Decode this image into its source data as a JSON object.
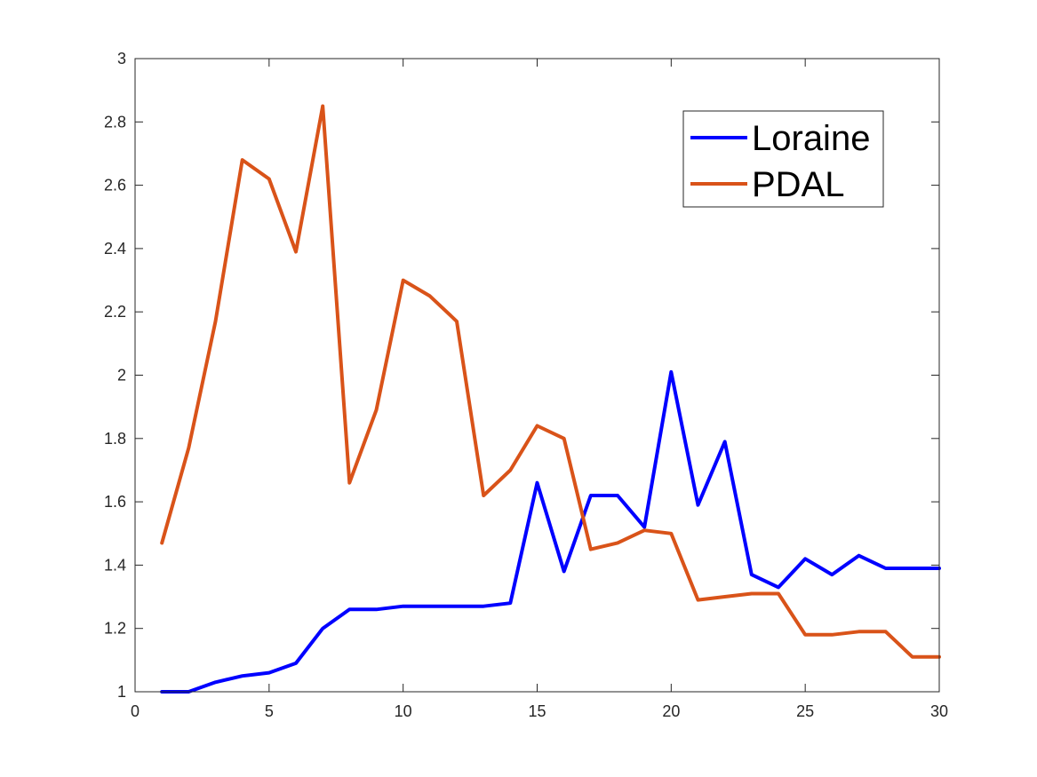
{
  "chart_data": {
    "type": "line",
    "title": "",
    "xlabel": "",
    "ylabel": "",
    "xlim": [
      0,
      30
    ],
    "ylim": [
      1,
      3
    ],
    "xticks": [
      0,
      5,
      10,
      15,
      20,
      25,
      30
    ],
    "yticks": [
      1,
      1.2,
      1.4,
      1.6,
      1.8,
      2,
      2.2,
      2.4,
      2.6,
      2.8,
      3
    ],
    "grid": false,
    "legend_position": "top-right",
    "x": [
      1,
      2,
      3,
      4,
      5,
      6,
      7,
      8,
      9,
      10,
      11,
      12,
      13,
      14,
      15,
      16,
      17,
      18,
      19,
      20,
      21,
      22,
      23,
      24,
      25,
      26,
      27,
      28,
      29,
      30
    ],
    "series": [
      {
        "name": "Loraine",
        "color": "#0000FF",
        "values": [
          1.0,
          1.0,
          1.03,
          1.05,
          1.06,
          1.09,
          1.2,
          1.26,
          1.26,
          1.27,
          1.27,
          1.27,
          1.27,
          1.28,
          1.66,
          1.38,
          1.62,
          1.62,
          1.52,
          2.01,
          1.59,
          1.79,
          1.37,
          1.33,
          1.42,
          1.37,
          1.43,
          1.39,
          1.39,
          1.39
        ]
      },
      {
        "name": "PDAL",
        "color": "#D95319",
        "values": [
          1.47,
          1.77,
          2.17,
          2.68,
          2.62,
          2.39,
          2.85,
          1.66,
          1.89,
          2.3,
          2.25,
          2.17,
          1.62,
          1.7,
          1.84,
          1.8,
          1.45,
          1.47,
          1.51,
          1.5,
          1.29,
          1.3,
          1.31,
          1.31,
          1.18,
          1.18,
          1.19,
          1.19,
          1.11,
          1.11
        ]
      }
    ]
  }
}
